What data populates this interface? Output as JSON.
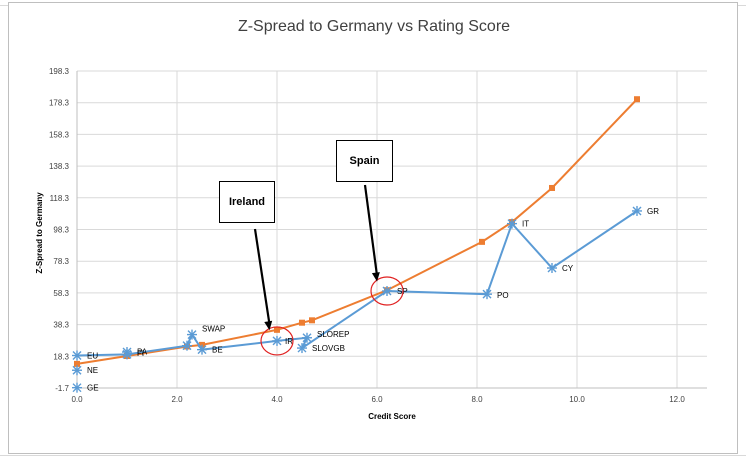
{
  "chart_data": {
    "type": "line",
    "title": "Z-Spread to Germany vs Rating Score",
    "xlabel": "Credit Score",
    "ylabel": "Z-Spread to Germany",
    "xlim": [
      0.0,
      12.6
    ],
    "ylim": [
      -1.7,
      198.3
    ],
    "x_ticks": [
      "0.0",
      "2.0",
      "4.0",
      "6.0",
      "8.0",
      "10.0",
      "12.0"
    ],
    "x_tick_values": [
      0,
      2,
      4,
      6,
      8,
      10,
      12
    ],
    "y_ticks": [
      "-1.7",
      "18.3",
      "38.3",
      "58.3",
      "78.3",
      "98.3",
      "118.3",
      "138.3",
      "158.3",
      "178.3",
      "198.3"
    ],
    "y_tick_values": [
      -1.7,
      18.3,
      38.3,
      58.3,
      78.3,
      98.3,
      118.3,
      138.3,
      158.3,
      178.3,
      198.3
    ],
    "grid": true,
    "series": [
      {
        "color": "#5b9bd5",
        "marker": "asterisk",
        "points": [
          {
            "x": 0.0,
            "y": 18.8,
            "label": "EU"
          },
          {
            "x": 0.0,
            "y": 9.5,
            "label": "NE"
          },
          {
            "x": 0.0,
            "y": -1.5,
            "label": "GE"
          },
          {
            "x": 1.0,
            "y": 21.0,
            "label": "FI"
          },
          {
            "x": 1.0,
            "y": 19.5,
            "label": "PA"
          },
          {
            "x": 2.2,
            "y": 25.0,
            "label": ""
          },
          {
            "x": 2.3,
            "y": 32.0,
            "label": "SWAP"
          },
          {
            "x": 2.5,
            "y": 22.5,
            "label": "BE"
          },
          {
            "x": 4.0,
            "y": 28.0,
            "label": "IR"
          },
          {
            "x": 4.5,
            "y": 23.5,
            "label": "SLOVGB"
          },
          {
            "x": 4.6,
            "y": 30.0,
            "label": "SLOREP"
          },
          {
            "x": 6.2,
            "y": 59.5,
            "label": "SP"
          },
          {
            "x": 8.2,
            "y": 57.5,
            "label": "PO"
          },
          {
            "x": 8.7,
            "y": 102.0,
            "label": "IT"
          },
          {
            "x": 9.5,
            "y": 74.0,
            "label": "CY"
          },
          {
            "x": 11.2,
            "y": 110.0,
            "label": "GR"
          }
        ],
        "line_path_x": [
          0.0,
          1.0,
          2.2,
          2.3,
          2.5,
          4.0,
          4.6,
          4.5,
          6.2,
          8.2,
          8.7,
          9.5,
          11.2
        ],
        "line_path_y": [
          18.8,
          19.5,
          25.0,
          32.0,
          22.5,
          28.0,
          30.0,
          23.5,
          59.5,
          57.5,
          102.0,
          74.0,
          110.0
        ]
      },
      {
        "color": "#ed7d31",
        "marker": "square",
        "x": [
          0.0,
          1.0,
          2.2,
          2.5,
          4.0,
          4.5,
          4.7,
          6.2,
          8.1,
          8.7,
          9.5,
          11.2
        ],
        "y": [
          13.5,
          18.5,
          24.5,
          25.5,
          35.0,
          39.5,
          41.0,
          60.0,
          90.5,
          103.0,
          124.5,
          180.5
        ]
      }
    ],
    "annotations": [
      {
        "text": "Ireland",
        "arrow_to": {
          "x": 3.85,
          "y": 38.5
        }
      },
      {
        "text": "Spain",
        "arrow_to": {
          "x": 6.0,
          "y": 68.0
        }
      }
    ],
    "circled_points": [
      {
        "x": 4.0,
        "y": 28.0
      },
      {
        "x": 6.2,
        "y": 59.5
      }
    ]
  }
}
